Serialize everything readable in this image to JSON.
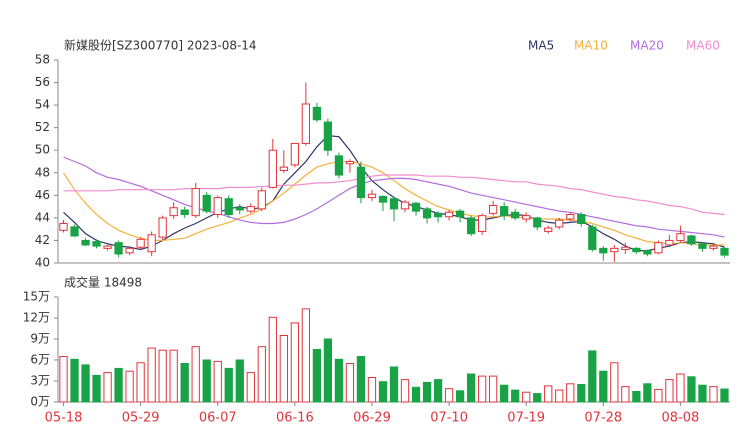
{
  "chart_data": [
    {
      "type": "candlestick",
      "title": "新媒股份[SZ300770] 2023-08-14",
      "up_color": "#e0353b",
      "down_color": "#19a346",
      "open": [
        42.9,
        43.2,
        42.0,
        41.9,
        41.3,
        41.8,
        40.9,
        41.4,
        41.0,
        42.3,
        44.2,
        44.7,
        44.2,
        46.0,
        44.3,
        45.7,
        44.9,
        44.6,
        44.8,
        46.7,
        48.2,
        48.7,
        50.6,
        53.8,
        52.5,
        49.5,
        48.8,
        48.5,
        45.8,
        45.9,
        45.7,
        44.8,
        45.3,
        44.8,
        44.4,
        44.1,
        44.6,
        44.0,
        42.8,
        44.4,
        45.0,
        44.5,
        43.9,
        44.0,
        42.8,
        43.2,
        43.9,
        44.3,
        43.2,
        41.3,
        41.0,
        41.2,
        41.3,
        41.1,
        40.9,
        41.6,
        42.0,
        42.4,
        41.7,
        41.3,
        41.3
      ],
      "high": [
        43.8,
        43.4,
        42.2,
        42.1,
        41.7,
        42.0,
        41.5,
        42.3,
        42.8,
        44.2,
        45.4,
        45.0,
        47.1,
        46.3,
        46.0,
        46.0,
        45.2,
        45.3,
        46.7,
        51.0,
        50.0,
        50.6,
        56.0,
        54.2,
        52.8,
        49.8,
        49.2,
        49.0,
        46.5,
        46.0,
        45.9,
        45.6,
        45.4,
        45.0,
        44.6,
        44.7,
        44.8,
        44.2,
        44.4,
        45.5,
        45.4,
        44.8,
        44.5,
        44.1,
        43.3,
        44.0,
        44.5,
        44.5,
        43.4,
        41.5,
        41.6,
        41.8,
        41.4,
        41.2,
        42.0,
        42.5,
        43.3,
        42.5,
        41.8,
        41.7,
        41.4
      ],
      "low": [
        42.7,
        42.3,
        41.5,
        41.3,
        41.1,
        40.5,
        40.7,
        41.2,
        40.6,
        42.0,
        43.9,
        44.0,
        44.0,
        44.4,
        44.0,
        44.0,
        44.3,
        44.4,
        44.6,
        46.6,
        48.0,
        48.5,
        50.4,
        52.5,
        49.5,
        47.5,
        48.0,
        45.3,
        45.5,
        44.6,
        43.7,
        44.5,
        44.2,
        43.5,
        43.6,
        43.8,
        43.6,
        42.4,
        42.5,
        44.2,
        43.8,
        43.8,
        43.6,
        42.9,
        42.6,
        43.0,
        43.7,
        43.2,
        41.0,
        40.2,
        40.1,
        40.8,
        40.8,
        40.6,
        40.8,
        41.4,
        41.8,
        41.5,
        41.0,
        41.1,
        40.5
      ],
      "close": [
        43.5,
        42.4,
        41.6,
        41.5,
        41.5,
        40.8,
        41.3,
        42.1,
        42.5,
        44.0,
        44.9,
        44.3,
        46.6,
        44.6,
        45.8,
        44.3,
        44.7,
        45.0,
        46.4,
        50.0,
        48.5,
        50.6,
        54.1,
        52.7,
        50.0,
        47.8,
        49.0,
        45.8,
        46.1,
        45.4,
        44.8,
        45.4,
        44.6,
        44.0,
        44.1,
        44.5,
        44.1,
        42.6,
        44.2,
        45.1,
        44.2,
        44.0,
        44.2,
        43.2,
        43.1,
        43.8,
        44.3,
        43.5,
        41.2,
        40.9,
        41.3,
        41.4,
        41.0,
        40.8,
        41.8,
        42.0,
        42.6,
        41.7,
        41.3,
        41.5,
        40.7
      ],
      "series": [
        {
          "name": "MA5",
          "color": "#2e3566",
          "values": [
            44.5,
            43.6,
            42.6,
            42.0,
            41.7,
            41.5,
            41.4,
            41.2,
            41.5,
            42.0,
            42.6,
            43.1,
            43.5,
            44.0,
            44.5,
            44.8,
            45.0,
            44.8,
            44.9,
            45.5,
            47.0,
            48.0,
            49.0,
            50.3,
            51.3,
            51.2,
            50.0,
            48.5,
            47.3,
            46.5,
            45.8,
            45.3,
            45.0,
            44.7,
            44.4,
            44.3,
            44.1,
            43.8,
            43.8,
            44.0,
            44.2,
            44.3,
            44.2,
            43.8,
            43.6,
            43.5,
            43.6,
            43.7,
            43.2,
            42.6,
            42.1,
            41.5,
            41.1,
            41.1,
            41.3,
            41.5,
            41.8,
            41.9,
            41.8,
            41.7,
            41.4
          ]
        },
        {
          "name": "MA10",
          "color": "#f5b13d",
          "values": [
            48.0,
            46.5,
            45.3,
            44.3,
            43.5,
            42.9,
            42.5,
            42.2,
            42.0,
            42.0,
            42.1,
            42.2,
            42.6,
            43.0,
            43.3,
            43.6,
            44.0,
            44.3,
            44.8,
            45.5,
            46.2,
            47.0,
            47.8,
            48.5,
            48.8,
            49.0,
            49.0,
            48.8,
            48.5,
            48.0,
            47.3,
            46.6,
            46.0,
            45.5,
            45.0,
            44.7,
            44.4,
            44.2,
            44.1,
            44.1,
            44.2,
            44.1,
            44.0,
            43.9,
            43.9,
            43.9,
            43.8,
            43.7,
            43.5,
            43.2,
            42.9,
            42.5,
            42.2,
            41.9,
            41.8,
            41.7,
            41.8,
            41.7,
            41.6,
            41.6,
            41.6
          ]
        },
        {
          "name": "MA20",
          "color": "#b36ce0",
          "values": [
            49.4,
            49.0,
            48.6,
            48.0,
            47.6,
            47.4,
            47.1,
            46.8,
            46.4,
            46.0,
            45.6,
            45.2,
            44.9,
            44.6,
            44.4,
            44.1,
            43.8,
            43.6,
            43.5,
            43.5,
            43.6,
            43.9,
            44.3,
            44.8,
            45.4,
            46.0,
            46.6,
            47.0,
            47.3,
            47.4,
            47.5,
            47.5,
            47.4,
            47.2,
            47.0,
            46.8,
            46.5,
            46.2,
            46.0,
            45.8,
            45.6,
            45.4,
            45.2,
            45.0,
            44.8,
            44.6,
            44.5,
            44.3,
            44.1,
            43.9,
            43.7,
            43.5,
            43.3,
            43.2,
            43.0,
            42.9,
            42.8,
            42.7,
            42.6,
            42.5,
            42.3
          ]
        },
        {
          "name": "MA60",
          "color": "#f28ccf",
          "values": [
            46.4,
            46.4,
            46.4,
            46.4,
            46.4,
            46.5,
            46.5,
            46.5,
            46.5,
            46.5,
            46.5,
            46.6,
            46.6,
            46.6,
            46.6,
            46.7,
            46.7,
            46.7,
            46.8,
            46.8,
            46.9,
            46.9,
            47.0,
            47.1,
            47.1,
            47.2,
            47.3,
            47.5,
            47.7,
            47.8,
            47.8,
            47.8,
            47.8,
            47.7,
            47.7,
            47.7,
            47.6,
            47.6,
            47.5,
            47.4,
            47.3,
            47.2,
            47.2,
            47.0,
            46.9,
            46.8,
            46.6,
            46.5,
            46.3,
            46.1,
            45.9,
            45.8,
            45.6,
            45.5,
            45.3,
            45.1,
            45.0,
            44.8,
            44.5,
            44.4,
            44.3
          ]
        }
      ],
      "ylim": [
        40,
        58
      ],
      "yticks": [
        40,
        42,
        44,
        46,
        48,
        50,
        52,
        54,
        56,
        58
      ]
    },
    {
      "type": "bar",
      "title": "成交量 18498",
      "categories": [
        "05-18",
        null,
        null,
        null,
        null,
        null,
        null,
        "05-29",
        null,
        null,
        null,
        null,
        null,
        null,
        "06-07",
        null,
        null,
        null,
        null,
        null,
        null,
        "06-16",
        null,
        null,
        null,
        null,
        null,
        null,
        "06-29",
        null,
        null,
        null,
        null,
        null,
        null,
        "07-10",
        null,
        null,
        null,
        null,
        null,
        null,
        "07-19",
        null,
        null,
        null,
        null,
        null,
        null,
        "07-28",
        null,
        null,
        null,
        null,
        null,
        null,
        "08-08",
        null,
        null,
        null,
        null
      ],
      "values": [
        6.5,
        6.1,
        5.3,
        3.8,
        4.2,
        4.8,
        4.4,
        5.6,
        7.7,
        7.4,
        7.4,
        5.5,
        7.9,
        6.0,
        5.8,
        4.8,
        6.0,
        4.2,
        7.9,
        12.1,
        9.5,
        11.3,
        13.3,
        7.5,
        9.0,
        6.1,
        5.5,
        6.5,
        3.5,
        2.9,
        5.0,
        3.2,
        2.1,
        2.8,
        3.2,
        1.9,
        1.6,
        4.0,
        3.7,
        3.7,
        2.4,
        1.7,
        1.4,
        1.2,
        2.3,
        1.7,
        2.6,
        2.5,
        7.3,
        4.4,
        5.6,
        2.2,
        1.5,
        2.6,
        1.8,
        3.2,
        4.0,
        3.6,
        2.4,
        2.2,
        1.85
      ],
      "ylim": [
        0,
        15
      ],
      "yticks": [
        {
          "value": 0,
          "label": "0万"
        },
        {
          "value": 3,
          "label": "3万"
        },
        {
          "value": 6,
          "label": "6万"
        },
        {
          "value": 9,
          "label": "9万"
        },
        {
          "value": 12,
          "label": "12万"
        },
        {
          "value": 15,
          "label": "15万"
        }
      ]
    }
  ]
}
